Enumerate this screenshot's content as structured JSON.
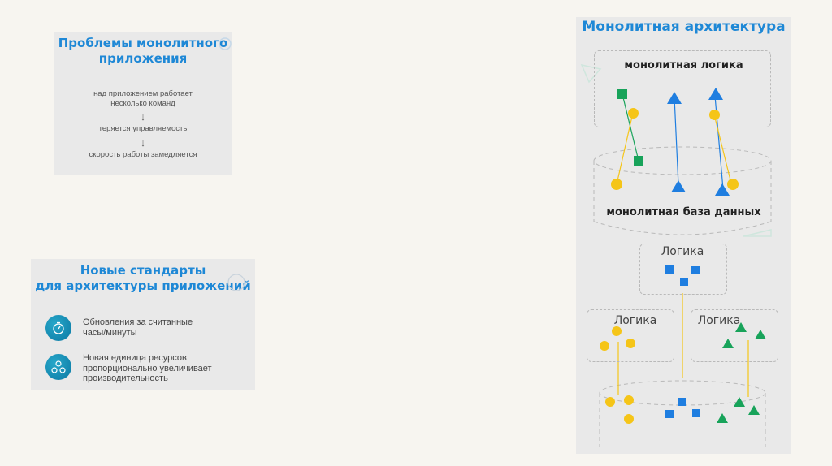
{
  "problems": {
    "title_line1": "Проблемы монолитного",
    "title_line2": "приложения",
    "item1_line1": "над приложением работает",
    "item1_line2": "несколько команд",
    "item2": "теряется управляемость",
    "item3": "скорость работы замедляется",
    "arrow": "↓"
  },
  "standards": {
    "title_line1": "Новые стандарты",
    "title_line2": "для архитектуры приложений",
    "item1": {
      "line1": "Обновления за считанные",
      "line2": "часы/минуты",
      "icon": "stopwatch-icon"
    },
    "item2": {
      "line1": "Новая единица ресурсов",
      "line2": "пропорционально увеличивает",
      "line3": "производительность",
      "icon": "team-icon"
    }
  },
  "monolith": {
    "title": "Монолитная архитектура",
    "logic_label": "монолитная логика",
    "db_label": "монолитная база данных",
    "logic_top": "Логика",
    "logic_left": "Логика",
    "logic_right": "Логика"
  },
  "colors": {
    "accent": "#1e88d6",
    "blue_shape": "#1f7ee0",
    "green_shape": "#18a35a",
    "yellow_shape": "#f5c518"
  }
}
